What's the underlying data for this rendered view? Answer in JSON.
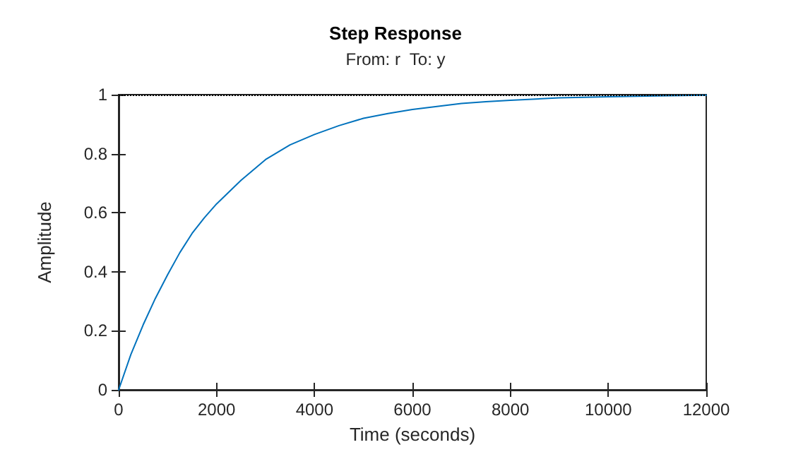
{
  "chart_data": {
    "type": "line",
    "title": "Step Response",
    "subtitle": "From: r  To: y",
    "xlabel": "Time (seconds)",
    "ylabel": "Amplitude",
    "x": [
      0,
      250,
      500,
      750,
      1000,
      1250,
      1500,
      1750,
      2000,
      2500,
      3000,
      3500,
      4000,
      4500,
      5000,
      5500,
      6000,
      6500,
      7000,
      7500,
      8000,
      9000,
      10000,
      11000,
      12000
    ],
    "series": [
      {
        "color": "#0072bd",
        "values": [
          0,
          0.12,
          0.22,
          0.31,
          0.39,
          0.465,
          0.53,
          0.583,
          0.63,
          0.71,
          0.78,
          0.83,
          0.865,
          0.895,
          0.92,
          0.936,
          0.95,
          0.96,
          0.97,
          0.976,
          0.981,
          0.989,
          0.993,
          0.996,
          0.998
        ]
      }
    ],
    "xlim": [
      0,
      12000
    ],
    "xticks": [
      0,
      2000,
      4000,
      6000,
      8000,
      10000,
      12000
    ],
    "ylim": [
      0,
      1
    ],
    "yticks": [
      0,
      0.2,
      0.4,
      0.6,
      0.8,
      1
    ],
    "ref_lines": [
      {
        "axis": "y",
        "value": 1,
        "color": "#000000",
        "line_style": "dotted"
      }
    ],
    "grid": false,
    "marker": "none",
    "line_style": "solid"
  }
}
